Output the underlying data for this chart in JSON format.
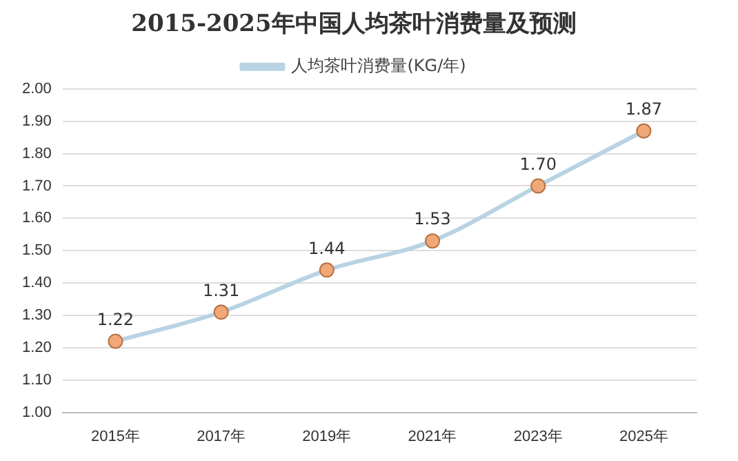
{
  "chart_data": {
    "type": "line",
    "title": "2015-2025年中国人均茶叶消费量及预测",
    "categories": [
      "2015年",
      "2017年",
      "2019年",
      "2021年",
      "2023年",
      "2025年"
    ],
    "series": [
      {
        "name": "人均茶叶消费量(KG/年)",
        "color": "#b8d3e3",
        "values": [
          1.22,
          1.31,
          1.44,
          1.53,
          1.7,
          1.87
        ],
        "colors": [
          "#f0a878",
          "#f0a878",
          "#f0a878",
          "#f0a878",
          "#f0a878",
          "#f0a878"
        ],
        "value_labels": [
          "1.22",
          "1.31",
          "1.44",
          "1.53",
          "1.70",
          "1.87"
        ]
      }
    ],
    "ylim": [
      1.0,
      2.0
    ],
    "yticks": [
      {
        "value": 1.0,
        "label": "1.00"
      },
      {
        "value": 1.1,
        "label": "1.10"
      },
      {
        "value": 1.2,
        "label": "1.20"
      },
      {
        "value": 1.3,
        "label": "1.30"
      },
      {
        "value": 1.4,
        "label": "1.40"
      },
      {
        "value": 1.5,
        "label": "1.50"
      },
      {
        "value": 1.6,
        "label": "1.60"
      },
      {
        "value": 1.7,
        "label": "1.70"
      },
      {
        "value": 1.8,
        "label": "1.80"
      },
      {
        "value": 1.9,
        "label": "1.90"
      },
      {
        "value": 2.0,
        "label": "2.00"
      }
    ],
    "grid": "y",
    "legend": "top",
    "marker": "circle",
    "line_style": "solid"
  }
}
